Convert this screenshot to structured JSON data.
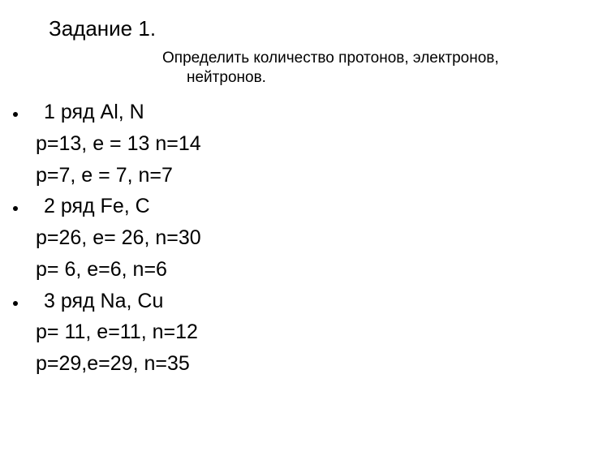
{
  "title": "Задание 1.",
  "subtitle_line1": "Определить количество протонов, электронов,",
  "subtitle_line2": "нейтронов.",
  "rows": [
    {
      "header": "1 ряд Al, N",
      "line1": "p=13, e = 13 n=14",
      "line2": "p=7, e = 7, n=7"
    },
    {
      "header": "2 ряд Fe, C",
      "line1": "p=26, e= 26, n=30",
      "line2": "p= 6, e=6, n=6"
    },
    {
      "header": "3 ряд Na, Cu",
      "line1": "p= 11, e=11, n=12",
      "line2": "p=29,e=29, n=35"
    }
  ],
  "style": {
    "background_color": "#ffffff",
    "text_color": "#000000",
    "title_fontsize": 26,
    "subtitle_fontsize": 19,
    "body_fontsize": 25,
    "font_family": "Arial, Helvetica, sans-serif"
  }
}
